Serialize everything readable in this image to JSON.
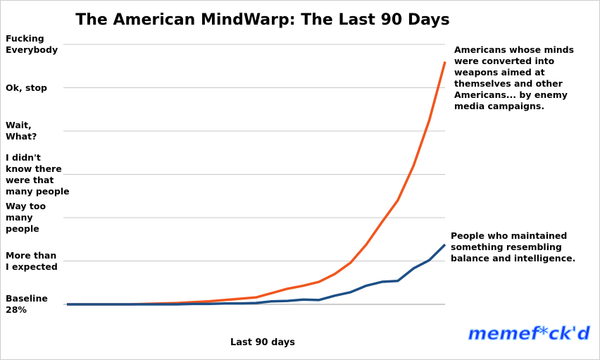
{
  "chart_data": {
    "type": "line",
    "title": "The American MindWarp: The Last 90 Days",
    "x_label": "Last 90 days",
    "watermark": "memef*ck'd",
    "categories": [
      null,
      null,
      null,
      null,
      null,
      null,
      null,
      null,
      null,
      null,
      null,
      null,
      null,
      null,
      null,
      null,
      null,
      null,
      null,
      null,
      null,
      null,
      null,
      null,
      null
    ],
    "ylim": [
      0,
      6
    ],
    "yticks": [
      {
        "value": 0,
        "label": "Baseline\n28%"
      },
      {
        "value": 1,
        "label": "More than\nI expected"
      },
      {
        "value": 2,
        "label": "Way too\nmany\npeople"
      },
      {
        "value": 3,
        "label": "I didn't\nknow there\nwere that\nmany people"
      },
      {
        "value": 4,
        "label": "Wait,\nWhat?"
      },
      {
        "value": 5,
        "label": "Ok, stop"
      },
      {
        "value": 6,
        "label": "Fucking\nEverybody"
      }
    ],
    "grid": true,
    "series": [
      {
        "name": "Americans whose minds\nwere converted into\nweapons aimed at\nthemselves and other\nAmericans... by enemy\nmedia campaigns.",
        "color": "#f0561e",
        "values": [
          0,
          0,
          0,
          0,
          0,
          0.01,
          0.02,
          0.03,
          0.05,
          0.07,
          0.1,
          0.13,
          0.16,
          0.26,
          0.36,
          0.43,
          0.52,
          0.7,
          0.96,
          1.38,
          1.9,
          2.4,
          3.2,
          4.25,
          5.6
        ]
      },
      {
        "name": "People who maintained\nsomething resembling\nbalance and intelligence.",
        "color": "#1d4f86",
        "values": [
          0,
          0,
          0,
          0,
          0,
          0,
          0,
          0,
          0.01,
          0.01,
          0.02,
          0.02,
          0.03,
          0.07,
          0.08,
          0.11,
          0.1,
          0.2,
          0.28,
          0.43,
          0.52,
          0.54,
          0.83,
          1.02,
          1.38
        ]
      }
    ]
  }
}
